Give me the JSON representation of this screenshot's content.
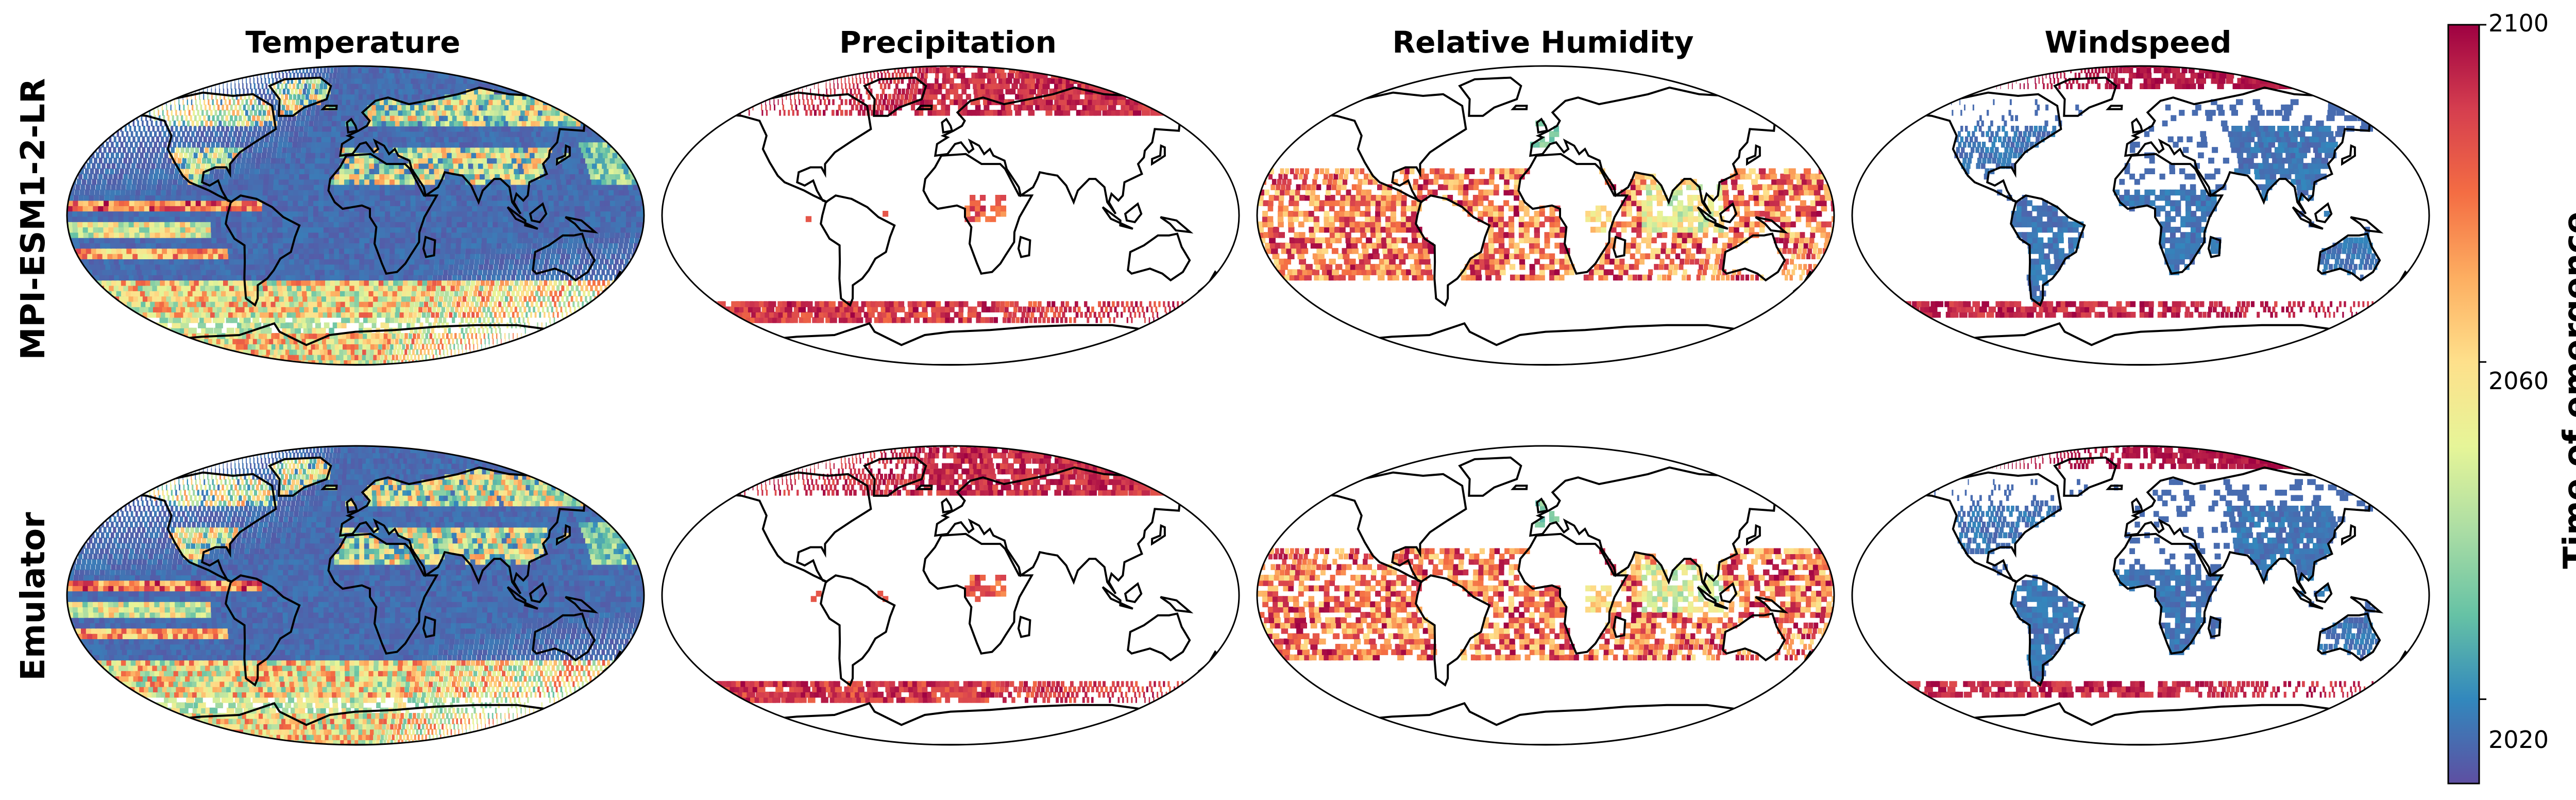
{
  "chart_data": {
    "type": "heatmap",
    "description_kind": "map panels of time of emergence",
    "columns": [
      "Temperature",
      "Precipitation",
      "Relative Humidity",
      "Windspeed"
    ],
    "rows": [
      "MPI-ESM1-2-LR",
      "Emulator"
    ],
    "colorbar": {
      "label": "Time of emergence",
      "range": [
        2010,
        2100
      ],
      "ticks": [
        2020,
        2060,
        2100
      ],
      "colormap": "Spectral_r",
      "colors": [
        "#5e4fa2",
        "#3288bd",
        "#66c2a5",
        "#abdda4",
        "#e6f598",
        "#fee08b",
        "#fdae61",
        "#f46d43",
        "#d53e4f",
        "#9e0142"
      ]
    },
    "panels": [
      {
        "row": "MPI-ESM1-2-LR",
        "variable": "Temperature",
        "background": "emerged early (~2015) over most of globe",
        "coverage": "full"
      },
      {
        "row": "MPI-ESM1-2-LR",
        "variable": "Precipitation",
        "background": "no emergence",
        "coverage": "high latitudes + Southern Ocean (~2080-2100)"
      },
      {
        "row": "MPI-ESM1-2-LR",
        "variable": "Relative Humidity",
        "background": "no emergence",
        "coverage": "tropical/subtropical oceans (~2040-2100)"
      },
      {
        "row": "MPI-ESM1-2-LR",
        "variable": "Windspeed",
        "background": "no emergence",
        "coverage": "continents (~2015) + Arctic/Southern Ocean (~2090)"
      },
      {
        "row": "Emulator",
        "variable": "Temperature",
        "background": "emerged early (~2015) over most of globe",
        "coverage": "full"
      },
      {
        "row": "Emulator",
        "variable": "Precipitation",
        "background": "no emergence",
        "coverage": "high latitudes + Southern Ocean (~2080-2100)"
      },
      {
        "row": "Emulator",
        "variable": "Relative Humidity",
        "background": "no emergence",
        "coverage": "tropical/subtropical oceans (~2040-2100)"
      },
      {
        "row": "Emulator",
        "variable": "Windspeed",
        "background": "no emergence",
        "coverage": "continents (~2015) + Southern Ocean (~2090)"
      }
    ]
  }
}
